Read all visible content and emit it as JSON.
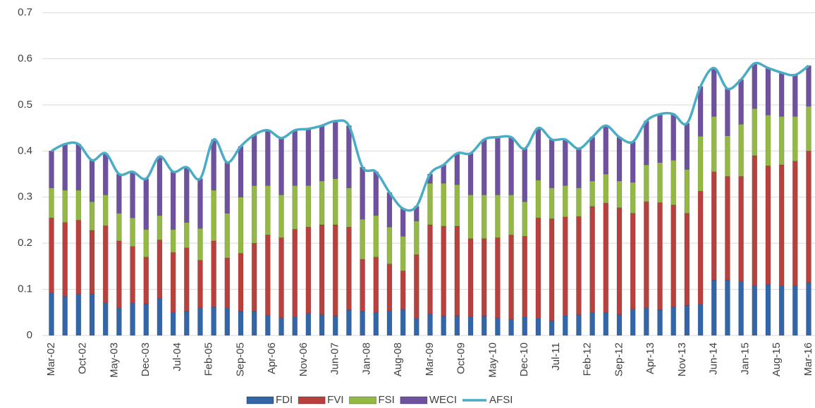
{
  "chart_data": {
    "type": "stacked_bar_line",
    "xticks": [
      {
        "value": 0,
        "label": "Mar-02"
      },
      {
        "value": 2.3333,
        "label": "Oct-02"
      },
      {
        "value": 4.6667,
        "label": "May-03"
      },
      {
        "value": 7,
        "label": "Dec-03"
      },
      {
        "value": 9.3333,
        "label": "Jul-04"
      },
      {
        "value": 11.6667,
        "label": "Feb-05"
      },
      {
        "value": 14,
        "label": "Sep-05"
      },
      {
        "value": 16.3333,
        "label": "Apr-06"
      },
      {
        "value": 18.6667,
        "label": "Nov-06"
      },
      {
        "value": 21,
        "label": "Jun-07"
      },
      {
        "value": 23.3333,
        "label": "Jan-08"
      },
      {
        "value": 25.6667,
        "label": "Aug-08"
      },
      {
        "value": 28,
        "label": "Mar-09"
      },
      {
        "value": 30.3333,
        "label": "Oct-09"
      },
      {
        "value": 32.6667,
        "label": "May-10"
      },
      {
        "value": 35,
        "label": "Dec-10"
      },
      {
        "value": 37.3333,
        "label": "Jul-11"
      },
      {
        "value": 39.6667,
        "label": "Feb-12"
      },
      {
        "value": 42,
        "label": "Sep-12"
      },
      {
        "value": 44.3333,
        "label": "Apr-13"
      },
      {
        "value": 46.6667,
        "label": "Nov-13"
      },
      {
        "value": 49,
        "label": "Jun-14"
      },
      {
        "value": 51.3333,
        "label": "Jan-15"
      },
      {
        "value": 53.6667,
        "label": "Aug-15"
      },
      {
        "value": 56,
        "label": "Mar-16"
      }
    ],
    "xlim": [
      0,
      56
    ],
    "ylim": [
      0,
      0.7
    ],
    "yticks": [
      {
        "value": 0,
        "label": "0"
      },
      0.1,
      0.2,
      0.3,
      0.4,
      0.5,
      0.6,
      0.7
    ],
    "grid": true,
    "legend": "bottom",
    "series": [
      {
        "name": "FDI",
        "type": "bar",
        "color": "#3366a8",
        "values": [
          0.092,
          0.085,
          0.09,
          0.09,
          0.07,
          0.06,
          0.07,
          0.068,
          0.08,
          0.05,
          0.052,
          0.06,
          0.062,
          0.06,
          0.052,
          0.052,
          0.043,
          0.038,
          0.04,
          0.048,
          0.045,
          0.042,
          0.055,
          0.052,
          0.05,
          0.053,
          0.057,
          0.037,
          0.046,
          0.042,
          0.042,
          0.04,
          0.042,
          0.038,
          0.035,
          0.04,
          0.037,
          0.032,
          0.043,
          0.045,
          0.05,
          0.05,
          0.045,
          0.057,
          0.06,
          0.055,
          0.062,
          0.065,
          0.067,
          0.12,
          0.12,
          0.118,
          0.108,
          0.11,
          0.108,
          0.108,
          0.115
        ]
      },
      {
        "name": "FVI",
        "type": "bar",
        "color": "#b8403d",
        "values": [
          0.163,
          0.16,
          0.16,
          0.138,
          0.168,
          0.145,
          0.123,
          0.102,
          0.127,
          0.13,
          0.138,
          0.103,
          0.143,
          0.108,
          0.126,
          0.148,
          0.175,
          0.174,
          0.19,
          0.187,
          0.195,
          0.198,
          0.18,
          0.113,
          0.12,
          0.102,
          0.083,
          0.138,
          0.194,
          0.195,
          0.195,
          0.17,
          0.168,
          0.174,
          0.183,
          0.175,
          0.218,
          0.221,
          0.214,
          0.213,
          0.23,
          0.237,
          0.232,
          0.208,
          0.23,
          0.233,
          0.221,
          0.2,
          0.246,
          0.235,
          0.225,
          0.227,
          0.282,
          0.258,
          0.262,
          0.27,
          0.285
        ]
      },
      {
        "name": "FSI",
        "type": "bar",
        "color": "#93b844",
        "values": [
          0.065,
          0.07,
          0.065,
          0.062,
          0.067,
          0.06,
          0.062,
          0.06,
          0.053,
          0.05,
          0.055,
          0.069,
          0.11,
          0.097,
          0.122,
          0.125,
          0.107,
          0.093,
          0.095,
          0.09,
          0.095,
          0.1,
          0.085,
          0.087,
          0.09,
          0.08,
          0.075,
          0.073,
          0.09,
          0.093,
          0.09,
          0.095,
          0.095,
          0.093,
          0.087,
          0.075,
          0.082,
          0.067,
          0.068,
          0.062,
          0.055,
          0.063,
          0.058,
          0.067,
          0.08,
          0.087,
          0.097,
          0.095,
          0.119,
          0.12,
          0.088,
          0.113,
          0.102,
          0.11,
          0.105,
          0.097,
          0.097
        ]
      },
      {
        "name": "WECI",
        "type": "bar",
        "color": "#6e52a0",
        "values": [
          0.08,
          0.1,
          0.1,
          0.09,
          0.09,
          0.085,
          0.1,
          0.11,
          0.128,
          0.125,
          0.12,
          0.108,
          0.11,
          0.11,
          0.11,
          0.11,
          0.12,
          0.123,
          0.12,
          0.123,
          0.12,
          0.125,
          0.135,
          0.113,
          0.095,
          0.075,
          0.06,
          0.032,
          0.02,
          0.04,
          0.068,
          0.09,
          0.12,
          0.125,
          0.125,
          0.115,
          0.113,
          0.105,
          0.1,
          0.085,
          0.095,
          0.105,
          0.095,
          0.088,
          0.095,
          0.105,
          0.1,
          0.1,
          0.108,
          0.105,
          0.102,
          0.097,
          0.098,
          0.102,
          0.095,
          0.09,
          0.088
        ]
      },
      {
        "name": "AFSI",
        "type": "line",
        "color": "#4bacc6",
        "values": [
          0.4,
          0.415,
          0.415,
          0.38,
          0.395,
          0.35,
          0.355,
          0.34,
          0.388,
          0.355,
          0.365,
          0.34,
          0.425,
          0.375,
          0.41,
          0.435,
          0.445,
          0.428,
          0.445,
          0.448,
          0.455,
          0.465,
          0.455,
          0.365,
          0.355,
          0.31,
          0.275,
          0.28,
          0.35,
          0.37,
          0.395,
          0.395,
          0.425,
          0.43,
          0.43,
          0.405,
          0.45,
          0.425,
          0.425,
          0.405,
          0.43,
          0.455,
          0.43,
          0.42,
          0.465,
          0.48,
          0.48,
          0.46,
          0.54,
          0.58,
          0.535,
          0.555,
          0.59,
          0.58,
          0.57,
          0.565,
          0.585
        ]
      }
    ]
  }
}
